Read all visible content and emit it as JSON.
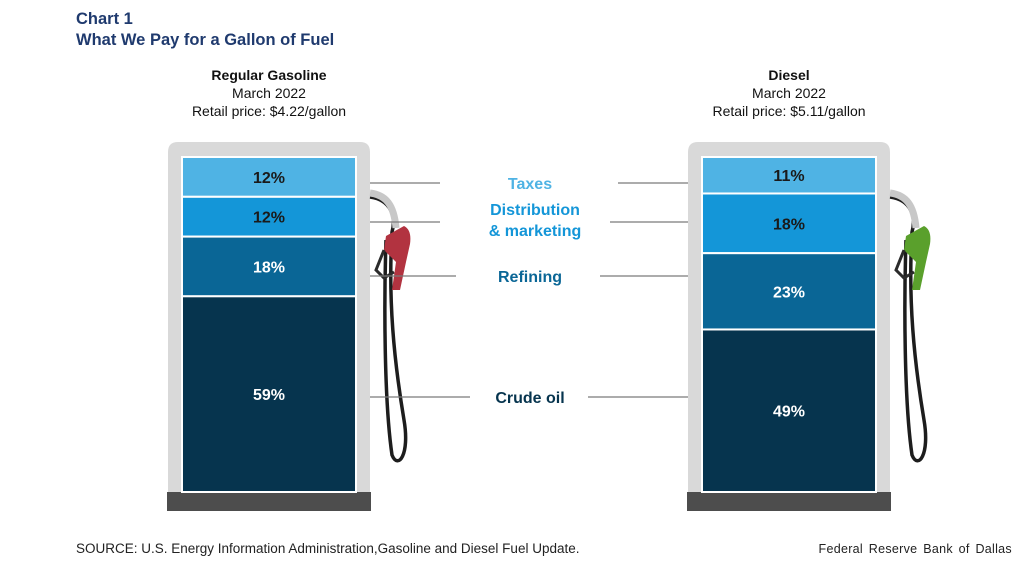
{
  "header": {
    "chart_number": "Chart 1",
    "title": "What We Pay for a Gallon of Fuel"
  },
  "chart_data": {
    "type": "bar",
    "stacked": true,
    "title": "What We Pay for a Gallon of Fuel",
    "unit": "%",
    "categories": [
      "Taxes",
      "Distribution & marketing",
      "Refining",
      "Crude oil"
    ],
    "category_labels": [
      {
        "line1": "Taxes",
        "line2": ""
      },
      {
        "line1": "Distribution",
        "line2": "& marketing"
      },
      {
        "line1": "Refining",
        "line2": ""
      },
      {
        "line1": "Crude oil",
        "line2": ""
      }
    ],
    "series": [
      {
        "name": "Regular Gasoline",
        "period": "March 2022",
        "retail_price": "Retail price: $4.22/gallon",
        "values": [
          12,
          12,
          18,
          59
        ],
        "nozzle_color": "#b23340"
      },
      {
        "name": "Diesel",
        "period": "March 2022",
        "retail_price": "Retail price: $5.11/gallon",
        "values": [
          11,
          18,
          23,
          49
        ],
        "nozzle_color": "#5aa02c"
      }
    ],
    "segment_colors": [
      "#4fb3e4",
      "#1496d8",
      "#0a6696",
      "#06344e"
    ],
    "label_colors": [
      "#4fb3e4",
      "#1496d8",
      "#0a6696",
      "#06344e"
    ],
    "segment_text_colors": [
      "#1a1a1a",
      "#1a1a1a",
      "#ffffff",
      "#ffffff"
    ],
    "legend": "center"
  },
  "footer": {
    "source": "SOURCE: U.S. Energy Information Administration,Gasoline and Diesel Fuel Update.",
    "credit": "Federal Reserve Bank of Dallas"
  }
}
